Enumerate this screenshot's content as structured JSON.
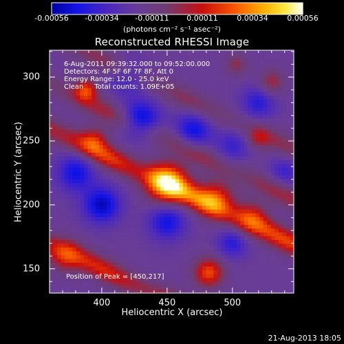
{
  "colorbar": {
    "tick_labels": [
      "-0.00056",
      "-0.00034",
      "-0.00011",
      "0.00011",
      "0.00034",
      "0.00056"
    ],
    "units_label": "(photons cm⁻² s⁻¹ asec⁻²)",
    "range": [
      -0.00056,
      0.00056
    ]
  },
  "title": "Reconstructed RHESSI Image",
  "annotations": [
    "6-Aug-2011 09:39:32.000 to 09:52:00.000",
    "Detectors: 4F 5F 6F 7F 8F, Att 0",
    "Energy Range: 12.0 - 25.0 keV",
    "Clean     Total counts: 1.09E+05"
  ],
  "peak_label": "Position of Peak = [450,217]",
  "footer_date": "21-Aug-2013 18:05",
  "chart_data": {
    "type": "heatmap",
    "title": "Reconstructed RHESSI Image",
    "xlabel": "Heliocentric X (arcsec)",
    "ylabel": "Heliocentric Y (arcsec)",
    "xlim": [
      360,
      547
    ],
    "ylim": [
      131,
      321
    ],
    "x_ticks": [
      400,
      450,
      500
    ],
    "y_ticks": [
      150,
      200,
      250,
      300
    ],
    "colormap": "blue-purple-red-orange-yellow-white",
    "color_range": [
      -0.00056,
      0.00056
    ],
    "peak": {
      "x": 450,
      "y": 217
    },
    "bands": [
      {
        "x0": 400,
        "y0": 275,
        "slope": -0.48,
        "amp": 0.00022
      },
      {
        "x0": 400,
        "y0": 240,
        "slope": -0.48,
        "amp": 0.0004
      },
      {
        "x0": 400,
        "y0": 150,
        "slope": -0.48,
        "amp": 0.00034
      },
      {
        "x0": 400,
        "y0": 314,
        "slope": -0.48,
        "amp": 0.00018
      }
    ],
    "blobs": [
      {
        "x": 450,
        "y": 217,
        "amp": 0.00056,
        "r": 11
      },
      {
        "x": 487,
        "y": 205,
        "amp": 0.00034,
        "r": 10
      },
      {
        "x": 515,
        "y": 190,
        "amp": 0.00026,
        "r": 9
      },
      {
        "x": 388,
        "y": 290,
        "amp": 0.00034,
        "r": 6
      },
      {
        "x": 482,
        "y": 147,
        "amp": 0.0004,
        "r": 8
      },
      {
        "x": 372,
        "y": 160,
        "amp": 0.00026,
        "r": 9
      },
      {
        "x": 395,
        "y": 252,
        "amp": 0.00022,
        "r": 7
      },
      {
        "x": 520,
        "y": 252,
        "amp": 0.00018,
        "r": 6
      },
      {
        "x": 530,
        "y": 296,
        "amp": 0.00022,
        "r": 7
      },
      {
        "x": 503,
        "y": 310,
        "amp": 0.00018,
        "r": 6
      }
    ],
    "troughs": [
      {
        "x": 430,
        "y": 267,
        "amp": -0.00034,
        "r": 10
      },
      {
        "x": 470,
        "y": 258,
        "amp": -0.00028,
        "r": 10
      },
      {
        "x": 500,
        "y": 246,
        "amp": -0.00018,
        "r": 9
      },
      {
        "x": 400,
        "y": 200,
        "amp": -0.00034,
        "r": 10
      },
      {
        "x": 450,
        "y": 187,
        "amp": -0.00028,
        "r": 10
      },
      {
        "x": 520,
        "y": 280,
        "amp": -0.00022,
        "r": 9
      },
      {
        "x": 380,
        "y": 225,
        "amp": -0.00028,
        "r": 10
      },
      {
        "x": 420,
        "y": 300,
        "amp": -0.00018,
        "r": 10
      },
      {
        "x": 500,
        "y": 170,
        "amp": -0.00022,
        "r": 8
      },
      {
        "x": 540,
        "y": 226,
        "amp": -0.00018,
        "r": 8
      }
    ]
  }
}
